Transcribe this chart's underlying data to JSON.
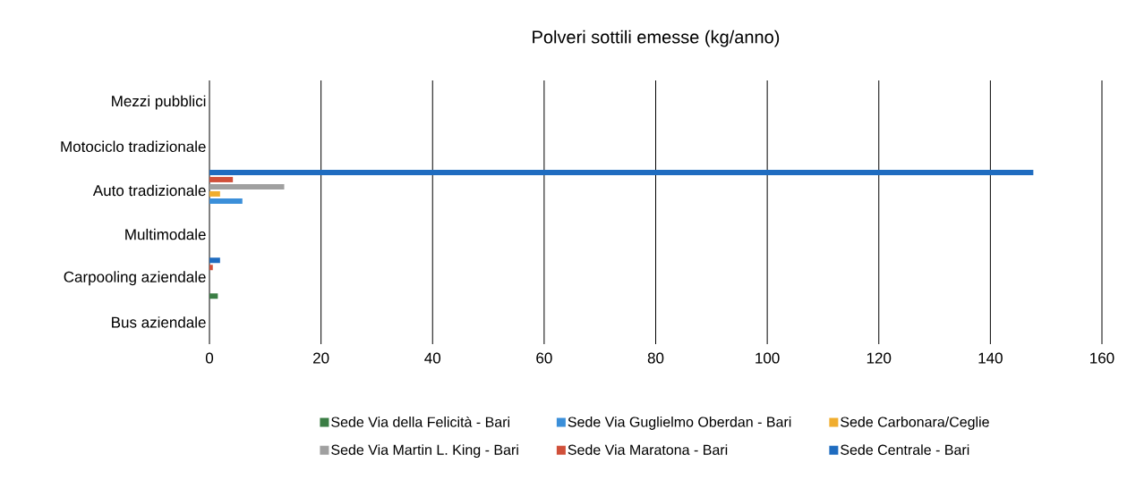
{
  "chart_data": {
    "type": "bar",
    "orientation": "horizontal",
    "title": "Polveri sottili emesse (kg/anno)",
    "categories": [
      "Mezzi pubblici",
      "Motociclo tradizionale",
      "Auto tradizionale",
      "Multimodale",
      "Carpooling aziendale",
      "Bus aziendale"
    ],
    "series": [
      {
        "name": "Sede Via della Felicità - Bari",
        "color": "#3a7d44",
        "values": [
          0,
          0,
          0,
          0,
          1.5,
          0
        ]
      },
      {
        "name": "Sede Via Guglielmo Oberdan - Bari",
        "color": "#3b8fd9",
        "values": [
          0,
          0,
          5.9,
          0,
          0,
          0
        ]
      },
      {
        "name": "Sede Carbonara/Ceglie",
        "color": "#f0ad2e",
        "values": [
          0,
          0,
          1.9,
          0,
          0,
          0
        ]
      },
      {
        "name": "Sede Via Martin L. King - Bari",
        "color": "#a0a0a0",
        "values": [
          0,
          0,
          13.4,
          0,
          0,
          0
        ]
      },
      {
        "name": "Sede Via Maratona - Bari",
        "color": "#d0503a",
        "values": [
          0,
          0,
          4.2,
          0,
          0.6,
          0
        ]
      },
      {
        "name": "Sede Centrale - Bari",
        "color": "#1f6cc0",
        "values": [
          0,
          0,
          147.7,
          0,
          1.9,
          0
        ]
      }
    ],
    "xlim": [
      0,
      160
    ],
    "xticks": [
      0,
      20,
      40,
      60,
      80,
      100,
      120,
      140,
      160
    ],
    "grid": "x",
    "legend": "bottom"
  }
}
